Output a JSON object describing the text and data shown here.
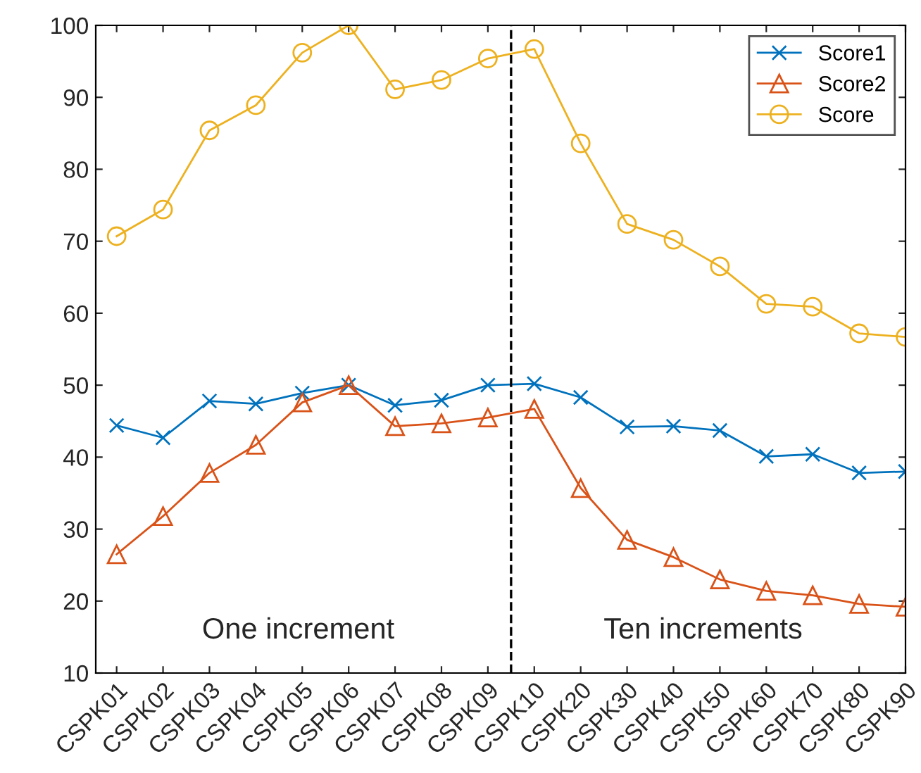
{
  "chart_data": {
    "type": "line",
    "categories": [
      "CSPK01",
      "CSPK02",
      "CSPK03",
      "CSPK04",
      "CSPK05",
      "CSPK06",
      "CSPK07",
      "CSPK08",
      "CSPK09",
      "CSPK10",
      "CSPK20",
      "CSPK30",
      "CSPK40",
      "CSPK50",
      "CSPK60",
      "CSPK70",
      "CSPK80",
      "CSPK90"
    ],
    "ylim": [
      10,
      100
    ],
    "yticks": [
      10,
      20,
      30,
      40,
      50,
      60,
      70,
      80,
      90,
      100
    ],
    "series": [
      {
        "name": "Score1",
        "color": "#0072bd",
        "marker": "cross",
        "values": [
          44.4,
          42.7,
          47.8,
          47.4,
          48.9,
          50.0,
          47.2,
          47.9,
          50.0,
          50.2,
          48.3,
          44.2,
          44.3,
          43.7,
          40.1,
          40.4,
          37.8,
          38.0
        ]
      },
      {
        "name": "Score2",
        "color": "#d95319",
        "marker": "triangle",
        "values": [
          26.5,
          31.8,
          37.8,
          41.7,
          47.6,
          50.0,
          44.3,
          44.7,
          45.5,
          46.7,
          35.7,
          28.5,
          26.1,
          23.0,
          21.4,
          20.8,
          19.6,
          19.2
        ]
      },
      {
        "name": "Score",
        "color": "#edb120",
        "marker": "circle",
        "values": [
          70.7,
          74.4,
          85.4,
          88.9,
          96.2,
          100,
          91.1,
          92.4,
          95.4,
          96.7,
          83.6,
          72.4,
          70.2,
          66.5,
          61.3,
          60.9,
          57.2,
          56.7
        ]
      }
    ],
    "annotations": [
      "One increment",
      "Ten increments"
    ],
    "legend": "top right",
    "grid": false
  }
}
